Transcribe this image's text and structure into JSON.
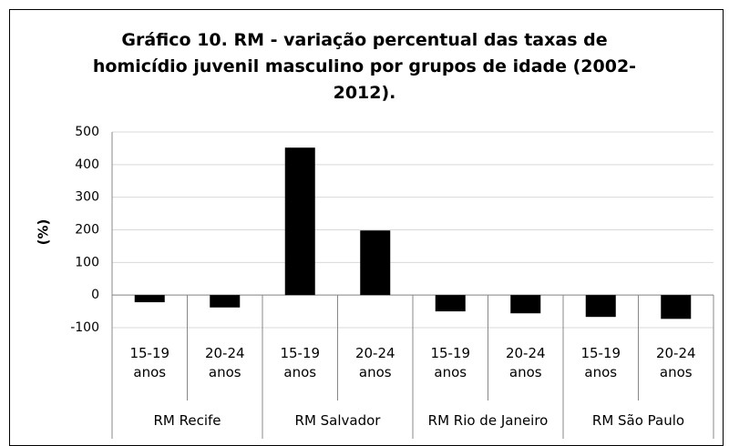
{
  "chart_data": {
    "type": "bar",
    "title": "Gráfico 10. RM - variação percentual das taxas de homicídio juvenil masculino por grupos de idade (2002-2012).",
    "y_label": "(%)",
    "categories": [
      "15-19 anos",
      "20-24 anos",
      "15-19 anos",
      "20-24 anos",
      "15-19 anos",
      "20-24 anos",
      "15-19 anos",
      "20-24 anos"
    ],
    "groups": [
      "RM Recife",
      "RM Salvador",
      "RM Rio de Janeiro",
      "RM São Paulo"
    ],
    "values": [
      -22,
      -38,
      452,
      198,
      -50,
      -56,
      -67,
      -73
    ],
    "color": "#000000",
    "ylim": [
      -100,
      500
    ],
    "yticks": [
      -100,
      0,
      100,
      200,
      300,
      400,
      500
    ],
    "grid": true
  }
}
